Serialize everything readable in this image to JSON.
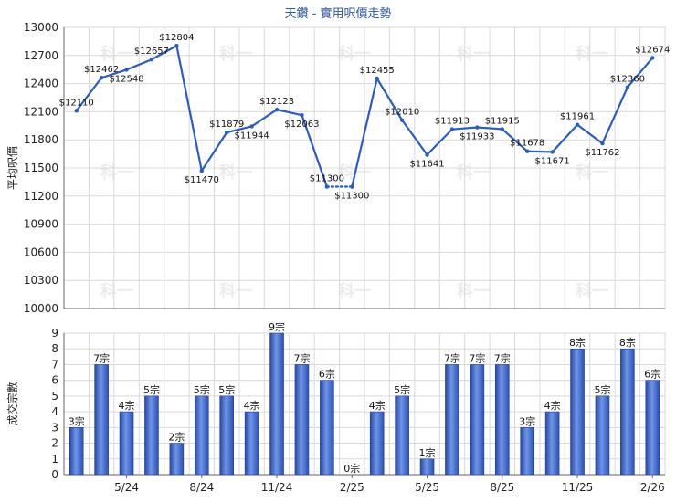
{
  "chart_data": [
    {
      "type": "line",
      "title": "天鑽 - 實用呎價走勢",
      "ylabel": "平均呎價",
      "ylim": [
        10000,
        13000
      ],
      "yticks": [
        10000,
        10300,
        10600,
        10900,
        11200,
        11500,
        11800,
        12100,
        12400,
        12700,
        13000
      ],
      "series": [
        {
          "values": [
            12110,
            12462,
            12548,
            12657,
            12804,
            11470,
            11879,
            11944,
            12123,
            12063,
            11300,
            11300,
            12455,
            12010,
            11641,
            11913,
            11933,
            11915,
            11678,
            11671,
            11961,
            11762,
            12360,
            12674
          ],
          "labels": [
            "$12110",
            "$12462",
            "$12548",
            "$12657",
            "$12804",
            "$11470",
            "$11879",
            "$11944",
            "$12123",
            "$12063",
            "$11300",
            "$11300",
            "$12455",
            "$12010",
            "$11641",
            "$11913",
            "$11933",
            "$11915",
            "$11678",
            "$11671",
            "$11961",
            "$11762",
            "$12360",
            "$12674"
          ]
        }
      ],
      "line_color": "#2b5cc0",
      "grid": true
    },
    {
      "type": "bar",
      "ylabel": "成交宗數",
      "ylim": [
        0,
        9
      ],
      "yticks": [
        0,
        1,
        2,
        3,
        4,
        5,
        6,
        7,
        8,
        9
      ],
      "x_tick_labels": [
        "5/24",
        "8/24",
        "11/24",
        "2/25",
        "5/25",
        "8/25",
        "11/25",
        "2/26"
      ],
      "series": [
        {
          "values": [
            3,
            7,
            4,
            5,
            2,
            5,
            5,
            4,
            9,
            7,
            6,
            0,
            4,
            5,
            1,
            7,
            7,
            7,
            3,
            4,
            8,
            5,
            8,
            6
          ],
          "labels": [
            "3宗",
            "7宗",
            "4宗",
            "5宗",
            "2宗",
            "5宗",
            "5宗",
            "4宗",
            "9宗",
            "7宗",
            "6宗",
            "0宗",
            "4宗",
            "5宗",
            "1宗",
            "7宗",
            "7宗",
            "7宗",
            "3宗",
            "4宗",
            "8宗",
            "5宗",
            "8宗",
            "6宗"
          ]
        }
      ],
      "bar_color": "#3a66c8",
      "grid": true
    }
  ],
  "watermark": "科一"
}
